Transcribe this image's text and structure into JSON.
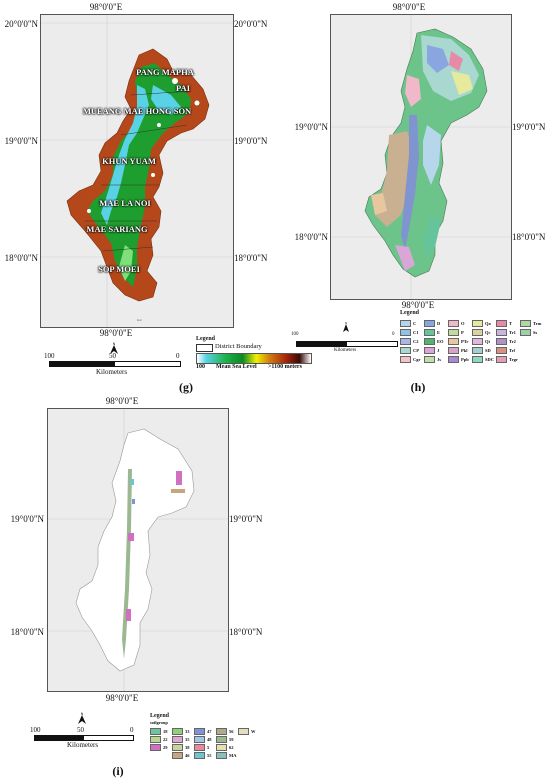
{
  "panels": {
    "g": {
      "label": "(g)",
      "coords": {
        "top": "98°0'0\"E",
        "bottom": "98°0'0\"E",
        "lat_20": "20°0'0\"N",
        "lat_19": "19°0'0\"N",
        "lat_18": "18°0'0\"N"
      },
      "districts": [
        "PANG MAPHA",
        "PAI",
        "MUEANG MAE HONG SON",
        "KHUN YUAM",
        "MAE LA NOI",
        "MAE SARIANG",
        "SOP MOEI"
      ],
      "legend": {
        "title": "Legend",
        "boundary": "District Boundary",
        "elev_low": "100",
        "elev_label": "Mean Sea Level",
        "elev_high": ">1100 meters"
      },
      "scale": {
        "left": "100",
        "mid": "50",
        "right": "0",
        "unit": "Kilometers"
      },
      "colors": {
        "low": "#5ad2e6",
        "mid": "#1e9e2e",
        "high": "#b5481a",
        "peak": "#ffffff"
      }
    },
    "h": {
      "label": "(h)",
      "coords": {
        "top": "98°0'0\"E",
        "bottom": "98°0'0\"E",
        "lat_19": "19°0'0\"N",
        "lat_18": "18°0'0\"N"
      },
      "legend": {
        "title": "Legend",
        "columns": [
          [
            {
              "code": "C",
              "color": "#b6d6ec"
            },
            {
              "code": "C1",
              "color": "#8fc3e3"
            },
            {
              "code": "C2",
              "color": "#aab6e6"
            },
            {
              "code": "CP",
              "color": "#a8d8d0"
            },
            {
              "code": "Cgr",
              "color": "#f4c2c2"
            }
          ],
          [
            {
              "code": "D",
              "color": "#8aa6e0"
            },
            {
              "code": "E",
              "color": "#66c49a"
            },
            {
              "code": "EO",
              "color": "#50b36e"
            },
            {
              "code": "J",
              "color": "#d9a6d8"
            },
            {
              "code": "Js",
              "color": "#bde1a7"
            }
          ],
          [
            {
              "code": "O",
              "color": "#f0b8c8"
            },
            {
              "code": "P",
              "color": "#c4d9a0"
            },
            {
              "code": "PTr",
              "color": "#e8c6a0"
            },
            {
              "code": "Pkl",
              "color": "#d8a4c8"
            },
            {
              "code": "Ppb",
              "color": "#a98ad0"
            }
          ],
          [
            {
              "code": "Qa",
              "color": "#e6ea9c"
            },
            {
              "code": "Qc",
              "color": "#dcd4a0"
            },
            {
              "code": "Qt",
              "color": "#e3b6e0"
            },
            {
              "code": "SD",
              "color": "#a6ccd4"
            },
            {
              "code": "SDC",
              "color": "#8cd8c0"
            }
          ],
          [
            {
              "code": "T",
              "color": "#e68aa8"
            },
            {
              "code": "Tr1",
              "color": "#c8b4e0"
            },
            {
              "code": "Tr2",
              "color": "#b090c8"
            },
            {
              "code": "Trl",
              "color": "#d89080"
            },
            {
              "code": "Trgr",
              "color": "#e0a0b4"
            }
          ],
          [
            {
              "code": "Trm",
              "color": "#b0d8a0"
            },
            {
              "code": "Ss",
              "color": "#9ed0a8"
            }
          ]
        ]
      },
      "scale": {
        "left": "100",
        "right": "0",
        "unit": "Kilometers"
      }
    },
    "i": {
      "label": "(i)",
      "coords": {
        "top": "98°0'0\"E",
        "bottom": "98°0'0\"E",
        "lat_19": "19°0'0\"N",
        "lat_18": "18°0'0\"N"
      },
      "legend": {
        "title": "Legend",
        "header": "soilgroup",
        "columns": [
          [
            {
              "code": "18",
              "color": "#6fc4a0"
            },
            {
              "code": "22",
              "color": "#b8d890"
            },
            {
              "code": "29",
              "color": "#d070c0"
            }
          ],
          [
            {
              "code": "33",
              "color": "#8fd07a"
            },
            {
              "code": "35",
              "color": "#e0a6d4"
            },
            {
              "code": "38",
              "color": "#c9d49c"
            },
            {
              "code": "46",
              "color": "#c8a480"
            }
          ],
          [
            {
              "code": "47",
              "color": "#8094d0"
            },
            {
              "code": "48",
              "color": "#a0c8e6"
            },
            {
              "code": "5",
              "color": "#e88a9c"
            },
            {
              "code": "55",
              "color": "#70c4d0"
            }
          ],
          [
            {
              "code": "56",
              "color": "#b0a88a"
            },
            {
              "code": "59",
              "color": "#9cb890"
            },
            {
              "code": "62",
              "color": "#e6e0b0"
            },
            {
              "code": "MA",
              "color": "#88c0c0"
            }
          ],
          [
            {
              "code": "W",
              "color": "#e6dcc0"
            }
          ]
        ]
      },
      "scale": {
        "left": "100",
        "mid": "50",
        "right": "0",
        "unit": "Kilometers"
      }
    }
  }
}
